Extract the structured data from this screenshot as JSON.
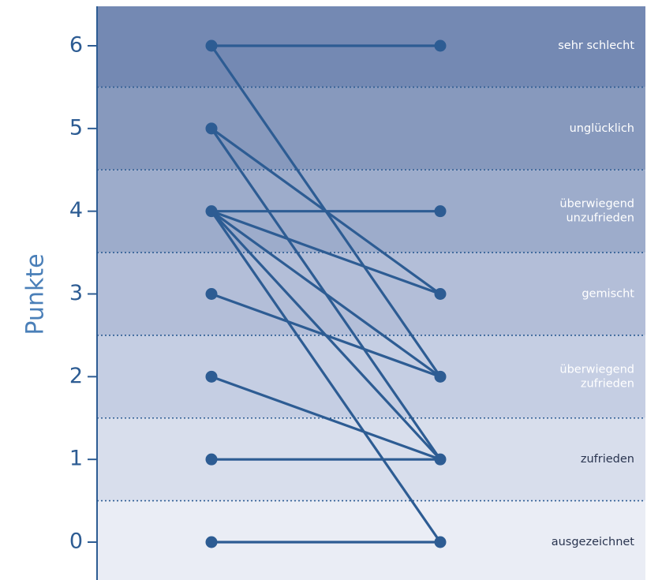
{
  "chart_data": {
    "type": "line",
    "ylabel": "Punkte",
    "ylim": [
      -0.4,
      6.5
    ],
    "y_ticks": [
      0,
      1,
      2,
      3,
      4,
      5,
      6
    ],
    "bands": [
      {
        "value": 6,
        "label_lines": [
          "sehr schlecht"
        ],
        "fill": "#7489b3",
        "text_color": "#ffffff"
      },
      {
        "value": 5,
        "label_lines": [
          "unglücklich"
        ],
        "fill": "#8799bd",
        "text_color": "#ffffff"
      },
      {
        "value": 4,
        "label_lines": [
          "überwiegend",
          "unzufrieden"
        ],
        "fill": "#9daccb",
        "text_color": "#ffffff"
      },
      {
        "value": 3,
        "label_lines": [
          "gemischt"
        ],
        "fill": "#b3bed8",
        "text_color": "#ffffff"
      },
      {
        "value": 2,
        "label_lines": [
          "überwiegend",
          "zufrieden"
        ],
        "fill": "#c5cee3",
        "text_color": "#ffffff"
      },
      {
        "value": 1,
        "label_lines": [
          "zufrieden"
        ],
        "fill": "#d8deec",
        "text_color": "#2a3550"
      },
      {
        "value": 0,
        "label_lines": [
          "ausgezeichnet"
        ],
        "fill": "#eaedf5",
        "text_color": "#2a3550"
      }
    ],
    "series": [
      {
        "values": [
          6,
          6
        ]
      },
      {
        "values": [
          6,
          2
        ]
      },
      {
        "values": [
          5,
          3
        ]
      },
      {
        "values": [
          5,
          1
        ]
      },
      {
        "values": [
          4,
          4
        ]
      },
      {
        "values": [
          4,
          3
        ]
      },
      {
        "values": [
          4,
          2
        ]
      },
      {
        "values": [
          4,
          1
        ]
      },
      {
        "values": [
          4,
          0
        ]
      },
      {
        "values": [
          3,
          2
        ]
      },
      {
        "values": [
          2,
          1
        ]
      },
      {
        "values": [
          1,
          1
        ]
      },
      {
        "values": [
          0,
          0
        ]
      }
    ],
    "colors": {
      "line": "#2d5c93",
      "axis": "#2d5c93",
      "separator": "#2d5c93"
    }
  }
}
